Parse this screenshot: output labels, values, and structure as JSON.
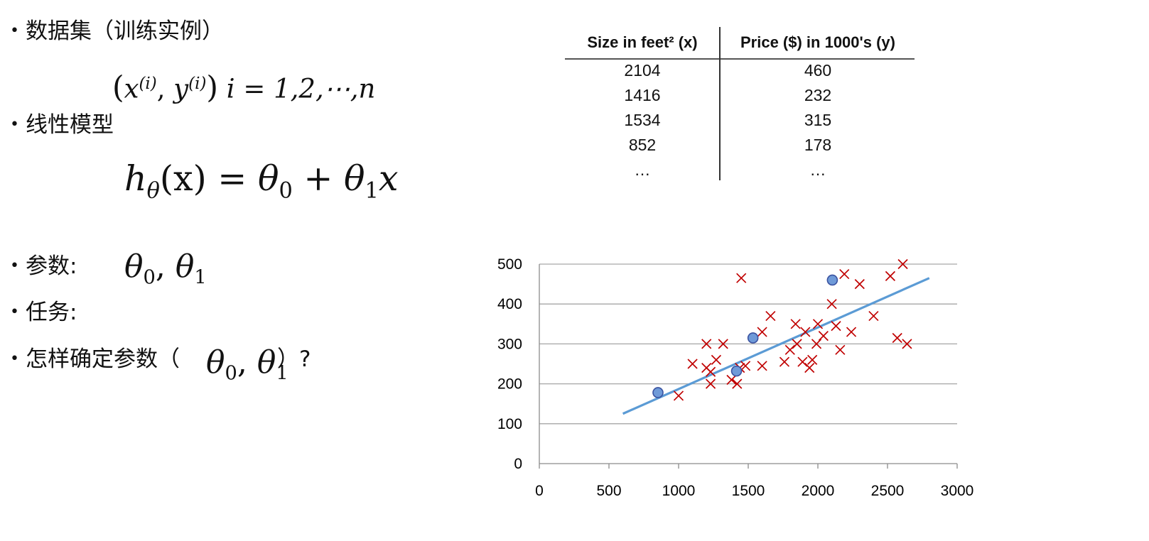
{
  "bullets": {
    "dataset": "数据集（训练实例）",
    "linear_model": "线性模型",
    "params": "参数:",
    "task": "任务:",
    "how_to": "怎样确定参数（",
    "how_to_tail": "）?"
  },
  "formula1": {
    "x": "x",
    "y": "y",
    "i_sup": "(i)",
    "rest": "i = 1,2,⋯,n"
  },
  "formula2": {
    "lhs": "h",
    "lhs_sub": "θ",
    "arg": "(x) = ",
    "t0": "θ",
    "t0_sub": "0",
    "plus": " + ",
    "t1": "θ",
    "t1_sub": "1",
    "tail": "x"
  },
  "theta_pair": {
    "t": "θ",
    "sub0": "0",
    "sub1": "1",
    "sep": ", "
  },
  "table": {
    "headers": [
      "Size in feet² (x)",
      "Price ($) in 1000's (y)"
    ],
    "rows": [
      [
        "2104",
        "460"
      ],
      [
        "1416",
        "232"
      ],
      [
        "1534",
        "315"
      ],
      [
        "852",
        "178"
      ],
      [
        "…",
        "…"
      ]
    ]
  },
  "chart_data": {
    "type": "scatter",
    "title": "",
    "xlabel": "",
    "ylabel": "",
    "xlim": [
      0,
      3000
    ],
    "ylim": [
      0,
      500
    ],
    "x_ticks": [
      "0",
      "500",
      "1000",
      "1500",
      "2000",
      "2500",
      "3000"
    ],
    "y_ticks": [
      "0",
      "100",
      "200",
      "300",
      "400",
      "500"
    ],
    "grid": "horizontal",
    "colors": {
      "cross": "#c00000",
      "circle_fill": "#6f9ad8",
      "circle_stroke": "#3a52a0",
      "line": "#5b9bd5"
    },
    "series": [
      {
        "marker": "x",
        "points": [
          [
            1000,
            170
          ],
          [
            1100,
            250
          ],
          [
            1200,
            300
          ],
          [
            1200,
            240
          ],
          [
            1230,
            200
          ],
          [
            1230,
            230
          ],
          [
            1270,
            260
          ],
          [
            1320,
            300
          ],
          [
            1380,
            210
          ],
          [
            1420,
            200
          ],
          [
            1440,
            240
          ],
          [
            1450,
            465
          ],
          [
            1480,
            245
          ],
          [
            1600,
            330
          ],
          [
            1600,
            245
          ],
          [
            1660,
            370
          ],
          [
            1760,
            255
          ],
          [
            1800,
            285
          ],
          [
            1840,
            350
          ],
          [
            1850,
            300
          ],
          [
            1890,
            255
          ],
          [
            1910,
            330
          ],
          [
            1940,
            240
          ],
          [
            1960,
            260
          ],
          [
            1990,
            300
          ],
          [
            2000,
            350
          ],
          [
            2040,
            320
          ],
          [
            2100,
            400
          ],
          [
            2130,
            345
          ],
          [
            2160,
            285
          ],
          [
            2190,
            475
          ],
          [
            2240,
            330
          ],
          [
            2300,
            450
          ],
          [
            2400,
            370
          ],
          [
            2520,
            470
          ],
          [
            2570,
            315
          ],
          [
            2610,
            500
          ],
          [
            2640,
            300
          ]
        ]
      },
      {
        "marker": "circle",
        "points": [
          [
            852,
            178
          ],
          [
            1416,
            232
          ],
          [
            1534,
            315
          ],
          [
            2104,
            460
          ]
        ]
      }
    ],
    "fit_line": {
      "x": [
        600,
        2800
      ],
      "y": [
        125,
        465
      ]
    }
  }
}
